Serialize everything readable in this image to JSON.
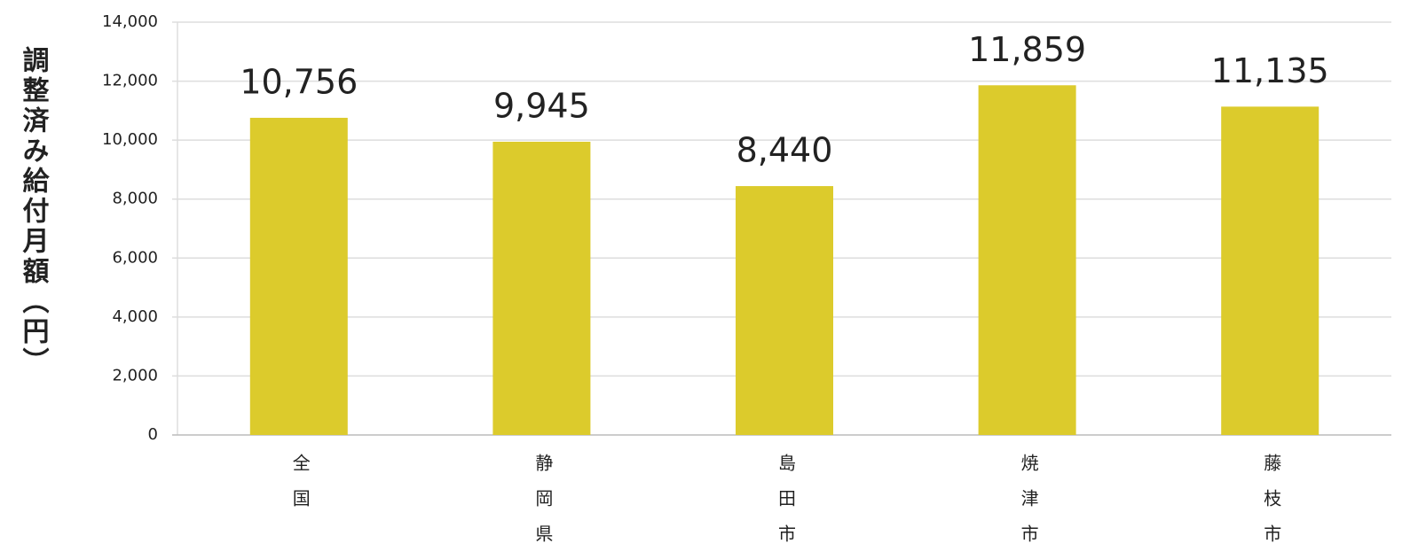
{
  "chart_data": {
    "type": "bar",
    "ylabel": "調整済み給付月額（円）",
    "categories": [
      "全国",
      "静岡県",
      "島田市",
      "焼津市",
      "藤枝市"
    ],
    "values": [
      10756,
      9945,
      8440,
      11859,
      11135
    ],
    "value_labels": [
      "10,756",
      "9,945",
      "8,440",
      "11,859",
      "11,135"
    ],
    "color": "#dccb2c",
    "ylim": [
      0,
      14000
    ],
    "yticks": [
      0,
      {
        "value": 2000,
        "label": "2,000"
      },
      {
        "value": 4000,
        "label": "4,000"
      },
      {
        "value": 6000,
        "label": "6,000"
      },
      {
        "value": 8000,
        "label": "8,000"
      },
      {
        "value": 10000,
        "label": "10,000"
      },
      {
        "value": 12000,
        "label": "12,000"
      },
      {
        "value": 14000,
        "label": "14,000"
      }
    ],
    "grid": true
  }
}
